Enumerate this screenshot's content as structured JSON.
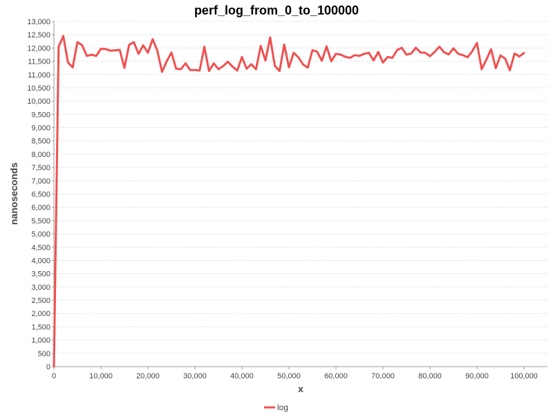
{
  "chart_data": {
    "type": "line",
    "title": "perf_log_from_0_to_100000",
    "xlabel": "x",
    "ylabel": "nanoseconds",
    "xlim": [
      0,
      105000
    ],
    "ylim": [
      0,
      13000
    ],
    "x_ticks": [
      0,
      10000,
      20000,
      30000,
      40000,
      50000,
      60000,
      70000,
      80000,
      90000,
      100000
    ],
    "x_tick_labels": [
      "0",
      "10,000",
      "20,000",
      "30,000",
      "40,000",
      "50,000",
      "60,000",
      "70,000",
      "80,000",
      "90,000",
      "100,000"
    ],
    "y_ticks": [
      0,
      500,
      1000,
      1500,
      2000,
      2500,
      3000,
      3500,
      4000,
      4500,
      5000,
      5500,
      6000,
      6500,
      7000,
      7500,
      8000,
      8500,
      9000,
      9500,
      10000,
      10500,
      11000,
      11500,
      12000,
      12500,
      13000
    ],
    "y_tick_labels": [
      "0",
      "500",
      "1,000",
      "1,500",
      "2,000",
      "2,500",
      "3,000",
      "3,500",
      "4,000",
      "4,500",
      "5,000",
      "5,500",
      "6,000",
      "6,500",
      "7,000",
      "7,500",
      "8,000",
      "8,500",
      "9,000",
      "9,500",
      "10,000",
      "10,500",
      "11,000",
      "11,500",
      "12,000",
      "12,500",
      "13,000"
    ],
    "grid": true,
    "legend_position": "bottom-center",
    "series": [
      {
        "name": "log",
        "color": "#f05050",
        "x": [
          0,
          1000,
          2000,
          3000,
          4000,
          5000,
          6000,
          7000,
          8000,
          9000,
          10000,
          11000,
          12000,
          13000,
          14000,
          15000,
          16000,
          17000,
          18000,
          19000,
          20000,
          21000,
          22000,
          23000,
          24000,
          25000,
          26000,
          27000,
          28000,
          29000,
          30000,
          31000,
          32000,
          33000,
          34000,
          35000,
          36000,
          37000,
          38000,
          39000,
          40000,
          41000,
          42000,
          43000,
          44000,
          45000,
          46000,
          47000,
          48000,
          49000,
          50000,
          51000,
          52000,
          53000,
          54000,
          55000,
          56000,
          57000,
          58000,
          59000,
          60000,
          61000,
          62000,
          63000,
          64000,
          65000,
          66000,
          67000,
          68000,
          69000,
          70000,
          71000,
          72000,
          73000,
          74000,
          75000,
          76000,
          77000,
          78000,
          79000,
          80000,
          81000,
          82000,
          83000,
          84000,
          85000,
          86000,
          87000,
          88000,
          89000,
          90000,
          91000,
          92000,
          93000,
          94000,
          95000,
          96000,
          97000,
          98000,
          99000,
          100000
        ],
        "values": [
          0,
          12050,
          12450,
          11450,
          11270,
          12220,
          12100,
          11700,
          11750,
          11700,
          11970,
          11960,
          11900,
          11910,
          11930,
          11250,
          12120,
          12220,
          11780,
          12100,
          11820,
          12330,
          11900,
          11100,
          11500,
          11830,
          11220,
          11200,
          11420,
          11170,
          11170,
          11150,
          12050,
          11130,
          11420,
          11200,
          11320,
          11480,
          11300,
          11150,
          11660,
          11220,
          11390,
          11200,
          12080,
          11530,
          12400,
          11330,
          11130,
          12130,
          11270,
          11820,
          11650,
          11380,
          11260,
          11920,
          11860,
          11520,
          12060,
          11500,
          11780,
          11750,
          11670,
          11630,
          11730,
          11700,
          11780,
          11820,
          11530,
          11850,
          11450,
          11660,
          11630,
          11920,
          12010,
          11750,
          11790,
          12010,
          11830,
          11820,
          11690,
          11850,
          12050,
          11840,
          11760,
          11990,
          11780,
          11730,
          11650,
          11880,
          12190,
          11200,
          11560,
          11950,
          11240,
          11720,
          11600,
          11160,
          11790,
          11680,
          11810
        ]
      }
    ]
  }
}
